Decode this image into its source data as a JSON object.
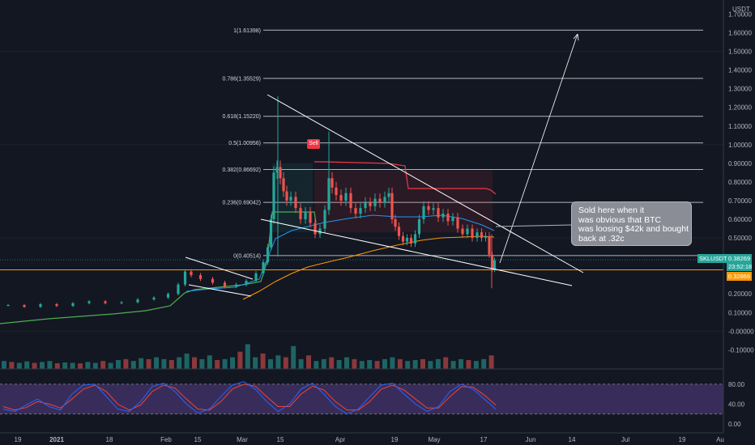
{
  "colors": {
    "background": "#131722",
    "up": "#26a69a",
    "down": "#ef5350",
    "fib_line": "#b2b5be",
    "trendline": "#ffffff",
    "ma_blue": "#2196f3",
    "ma_orange": "#ff9800",
    "supertrend_green": "#4caf50",
    "supertrend_red": "#f23645",
    "stoch_k": "#2962ff",
    "stoch_d": "#f44336",
    "stoch_bg": "#7e57c2"
  },
  "price_axis": {
    "currency": "USDT",
    "ticks": [
      "1.70000",
      "1.60000",
      "1.50000",
      "1.40000",
      "1.30000",
      "1.20000",
      "1.10000",
      "1.00000",
      "0.90000",
      "0.80000",
      "0.70000",
      "0.60000",
      "0.50000",
      "0.40000",
      "0.30000",
      "0.20000",
      "0.10000",
      "-0.00000",
      "-0.10000",
      "-0.20000"
    ]
  },
  "symbol_tag": {
    "symbol": "SKLUSDT",
    "price": "0.38269",
    "countdown": "23:52:18"
  },
  "buy_tag": {
    "price": "0.32866"
  },
  "stoch_axis": {
    "ticks": [
      "80.00",
      "40.00",
      "0.00"
    ]
  },
  "time_axis": [
    "19",
    "2021",
    "18",
    "Feb",
    "15",
    "Mar",
    "15",
    "Apr",
    "19",
    "May",
    "17",
    "Jun",
    "14",
    "Jul",
    "19",
    "Au"
  ],
  "fib_levels": [
    {
      "label": "1(1.61398)",
      "value": 1.61398
    },
    {
      "label": "0.786(1.35529)",
      "value": 1.35529
    },
    {
      "label": "0.618(1.15220)",
      "value": 1.1522
    },
    {
      "label": "0.5(1.00956)",
      "value": 1.00956
    },
    {
      "label": "0.382(0.86692)",
      "value": 0.86692
    },
    {
      "label": "0.236(0.69042)",
      "value": 0.69042
    },
    {
      "label": "0(0.40514)",
      "value": 0.40514
    }
  ],
  "sell_label": "Sell",
  "annotation": [
    "Sold here when it",
    "was obvious that BTC",
    "was loosing $42k and bought",
    "back at .32c"
  ],
  "chart_data": {
    "type": "candlestick",
    "symbol": "SKLUSDT",
    "ylim": [
      -0.2,
      1.7
    ],
    "x_ticks": [
      "19",
      "2021",
      "18",
      "Feb",
      "15",
      "Mar",
      "15",
      "Apr",
      "19",
      "May",
      "17",
      "Jun",
      "14",
      "Jul",
      "19",
      "Au"
    ],
    "fib_retracement": [
      1.61398,
      1.35529,
      1.1522,
      1.00956,
      0.86692,
      0.69042,
      0.40514
    ],
    "price_path": [
      [
        0,
        0.14
      ],
      [
        20,
        0.14
      ],
      [
        40,
        0.13
      ],
      [
        60,
        0.145
      ],
      [
        80,
        0.135
      ],
      [
        100,
        0.15
      ],
      [
        120,
        0.16
      ],
      [
        140,
        0.15
      ],
      [
        160,
        0.155
      ],
      [
        180,
        0.17
      ],
      [
        200,
        0.18
      ],
      [
        215,
        0.2
      ],
      [
        225,
        0.25
      ],
      [
        232,
        0.32
      ],
      [
        240,
        0.3
      ],
      [
        255,
        0.28
      ],
      [
        270,
        0.26
      ],
      [
        285,
        0.24
      ],
      [
        298,
        0.25
      ],
      [
        310,
        0.27
      ],
      [
        322,
        0.31
      ],
      [
        328,
        0.37
      ],
      [
        333,
        0.45
      ],
      [
        336,
        0.6
      ],
      [
        340,
        0.85
      ],
      [
        344,
        0.88
      ],
      [
        348,
        0.82
      ],
      [
        352,
        0.75
      ],
      [
        356,
        0.7
      ],
      [
        362,
        0.72
      ],
      [
        368,
        0.66
      ],
      [
        374,
        0.6
      ],
      [
        380,
        0.64
      ],
      [
        386,
        0.58
      ],
      [
        392,
        0.52
      ],
      [
        398,
        0.55
      ],
      [
        404,
        0.65
      ],
      [
        408,
        0.82
      ],
      [
        412,
        0.77
      ],
      [
        418,
        0.73
      ],
      [
        424,
        0.7
      ],
      [
        430,
        0.74
      ],
      [
        436,
        0.66
      ],
      [
        442,
        0.63
      ],
      [
        448,
        0.66
      ],
      [
        454,
        0.69
      ],
      [
        460,
        0.67
      ],
      [
        466,
        0.71
      ],
      [
        472,
        0.69
      ],
      [
        478,
        0.72
      ],
      [
        482,
        0.74
      ],
      [
        486,
        0.6
      ],
      [
        490,
        0.56
      ],
      [
        495,
        0.51
      ],
      [
        500,
        0.48
      ],
      [
        505,
        0.5
      ],
      [
        510,
        0.47
      ],
      [
        515,
        0.52
      ],
      [
        520,
        0.6
      ],
      [
        526,
        0.67
      ],
      [
        532,
        0.65
      ],
      [
        538,
        0.66
      ],
      [
        544,
        0.61
      ],
      [
        550,
        0.63
      ],
      [
        556,
        0.59
      ],
      [
        562,
        0.61
      ],
      [
        568,
        0.55
      ],
      [
        574,
        0.52
      ],
      [
        580,
        0.55
      ],
      [
        586,
        0.5
      ],
      [
        592,
        0.53
      ],
      [
        597,
        0.5
      ],
      [
        602,
        0.51
      ],
      [
        606,
        0.41
      ],
      [
        609,
        0.33
      ],
      [
        612,
        0.38
      ]
    ],
    "volume_bars": [
      0.04,
      0.035,
      0.03,
      0.038,
      0.03,
      0.035,
      0.04,
      0.028,
      0.032,
      0.03,
      0.027,
      0.035,
      0.03,
      0.04,
      0.03,
      0.045,
      0.05,
      0.04,
      0.055,
      0.05,
      0.06,
      0.05,
      0.045,
      0.06,
      0.08,
      0.06,
      0.05,
      0.07,
      0.045,
      0.05,
      0.06,
      0.09,
      0.13,
      0.06,
      0.08,
      0.05,
      0.07,
      0.06,
      0.12,
      0.05,
      0.07,
      0.04,
      0.05,
      0.06,
      0.045,
      0.06,
      0.05,
      0.04,
      0.045,
      0.04,
      0.05,
      0.06,
      0.05,
      0.04,
      0.045,
      0.05,
      0.04,
      0.05,
      0.06,
      0.04,
      0.05,
      0.045,
      0.04,
      0.05,
      0.07
    ],
    "stochastic": {
      "overbought": 80,
      "oversold": 20,
      "k": [
        30,
        25,
        38,
        50,
        35,
        28,
        60,
        78,
        80,
        55,
        30,
        25,
        45,
        75,
        82,
        65,
        40,
        22,
        30,
        55,
        78,
        85,
        70,
        45,
        25,
        40,
        70,
        82,
        60,
        35,
        20,
        30,
        55,
        78,
        82,
        60,
        40,
        25,
        35,
        65,
        80,
        70,
        50,
        30
      ],
      "d": [
        35,
        28,
        33,
        45,
        40,
        32,
        50,
        70,
        78,
        65,
        40,
        28,
        38,
        65,
        78,
        72,
        50,
        30,
        28,
        45,
        70,
        80,
        76,
        55,
        35,
        35,
        60,
        76,
        68,
        45,
        28,
        28,
        45,
        70,
        78,
        68,
        50,
        32,
        32,
        55,
        75,
        74,
        58,
        38
      ]
    }
  }
}
